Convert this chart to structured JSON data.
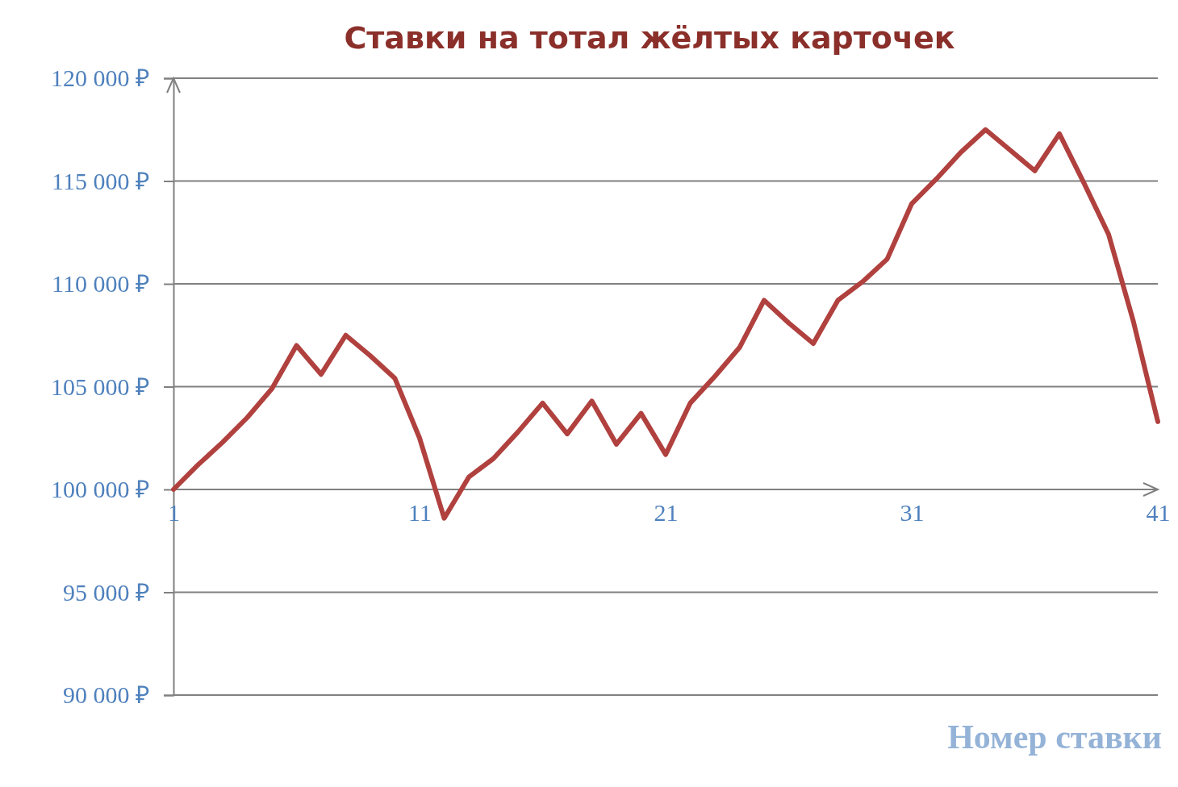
{
  "chart_data": {
    "type": "line",
    "title": "Ставки на тотал жёлтых карточек",
    "xlabel": "Номер ставки",
    "x": [
      1,
      2,
      3,
      4,
      5,
      6,
      7,
      8,
      9,
      10,
      11,
      12,
      13,
      14,
      15,
      16,
      17,
      18,
      19,
      20,
      21,
      22,
      23,
      24,
      25,
      26,
      27,
      28,
      29,
      30,
      31,
      32,
      33,
      34,
      35,
      36,
      37,
      38,
      39,
      40,
      41
    ],
    "series": [
      {
        "color": "#b0413e",
        "values": [
          100000,
          101200,
          102300,
          103500,
          104900,
          107000,
          105600,
          107500,
          106500,
          105400,
          102500,
          98600,
          100600,
          101500,
          102800,
          104200,
          102700,
          104300,
          102200,
          103700,
          101700,
          104200,
          105500,
          106900,
          109200,
          108100,
          107100,
          109200,
          110100,
          111200,
          113900,
          115100,
          116400,
          117500,
          116500,
          115500,
          117300,
          114900,
          112400,
          108200,
          103300
        ]
      }
    ],
    "xlim": [
      1,
      41
    ],
    "xticks": [
      1,
      11,
      21,
      31,
      41
    ],
    "ylim": [
      90000,
      120000
    ],
    "yticks": [
      {
        "value": 90000,
        "label": "90 000 ₽"
      },
      {
        "value": 95000,
        "label": "95 000 ₽"
      },
      {
        "value": 100000,
        "label": "100 000 ₽"
      },
      {
        "value": 105000,
        "label": "105 000 ₽"
      },
      {
        "value": 110000,
        "label": "110 000 ₽"
      },
      {
        "value": 115000,
        "label": "115 000 ₽"
      },
      {
        "value": 120000,
        "label": "120 000 ₽"
      }
    ],
    "grid": "y",
    "marker": "none",
    "line_style": "solid"
  }
}
